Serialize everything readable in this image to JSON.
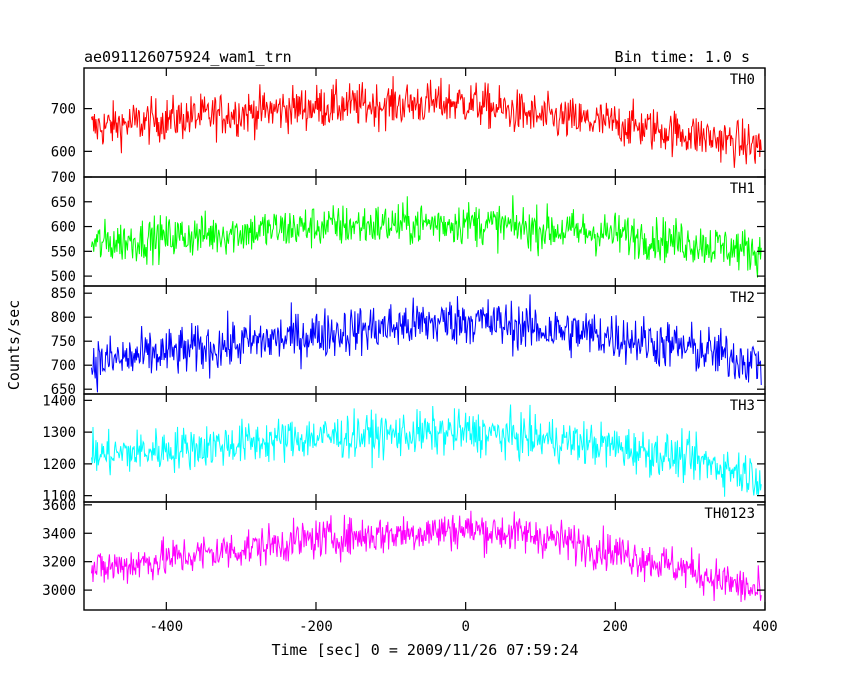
{
  "header": {
    "title": "ae091126075924_wam1_trn",
    "bin_time": "Bin time: 1.0 s"
  },
  "chart_data": {
    "type": "line",
    "title": "ae091126075924_wam1_trn",
    "xlabel": "Time [sec] 0 = 2009/11/26 07:59:24",
    "ylabel": "Counts/sec",
    "xlim": [
      -510,
      400
    ],
    "x_ticks": [
      -400,
      -200,
      0,
      200,
      400
    ],
    "panels": [
      {
        "name": "TH0",
        "color": "#ff0000",
        "ylim": [
          540,
          795
        ],
        "y_ticks": [
          600,
          700
        ],
        "trend": [
          [
            -500,
            655
          ],
          [
            -400,
            675
          ],
          [
            -200,
            705
          ],
          [
            0,
            715
          ],
          [
            100,
            680
          ],
          [
            200,
            665
          ],
          [
            300,
            640
          ],
          [
            395,
            610
          ]
        ],
        "noise": 26
      },
      {
        "name": "TH1",
        "color": "#00ff00",
        "ylim": [
          480,
          700
        ],
        "y_ticks": [
          500,
          550,
          600,
          650,
          700
        ],
        "trend": [
          [
            -500,
            565
          ],
          [
            -400,
            578
          ],
          [
            -200,
            600
          ],
          [
            0,
            608
          ],
          [
            100,
            595
          ],
          [
            200,
            585
          ],
          [
            300,
            568
          ],
          [
            395,
            548
          ]
        ],
        "noise": 22
      },
      {
        "name": "TH2",
        "color": "#0000ff",
        "ylim": [
          640,
          865
        ],
        "y_ticks": [
          650,
          700,
          750,
          800,
          850
        ],
        "trend": [
          [
            -500,
            705
          ],
          [
            -400,
            725
          ],
          [
            -200,
            765
          ],
          [
            0,
            795
          ],
          [
            100,
            775
          ],
          [
            200,
            760
          ],
          [
            300,
            735
          ],
          [
            395,
            705
          ]
        ],
        "noise": 26
      },
      {
        "name": "TH3",
        "color": "#00ffff",
        "ylim": [
          1080,
          1420
        ],
        "y_ticks": [
          1100,
          1200,
          1300,
          1400
        ],
        "trend": [
          [
            -500,
            1225
          ],
          [
            -400,
            1245
          ],
          [
            -200,
            1285
          ],
          [
            0,
            1300
          ],
          [
            100,
            1280
          ],
          [
            200,
            1255
          ],
          [
            300,
            1215
          ],
          [
            395,
            1160
          ]
        ],
        "noise": 35
      },
      {
        "name": "TH0123",
        "color": "#ff00ff",
        "ylim": [
          2860,
          3620
        ],
        "y_ticks": [
          3000,
          3200,
          3400,
          3600
        ],
        "trend": [
          [
            -500,
            3140
          ],
          [
            -400,
            3220
          ],
          [
            -200,
            3360
          ],
          [
            0,
            3430
          ],
          [
            100,
            3380
          ],
          [
            200,
            3270
          ],
          [
            300,
            3140
          ],
          [
            395,
            2980
          ]
        ],
        "noise": 70
      }
    ]
  }
}
